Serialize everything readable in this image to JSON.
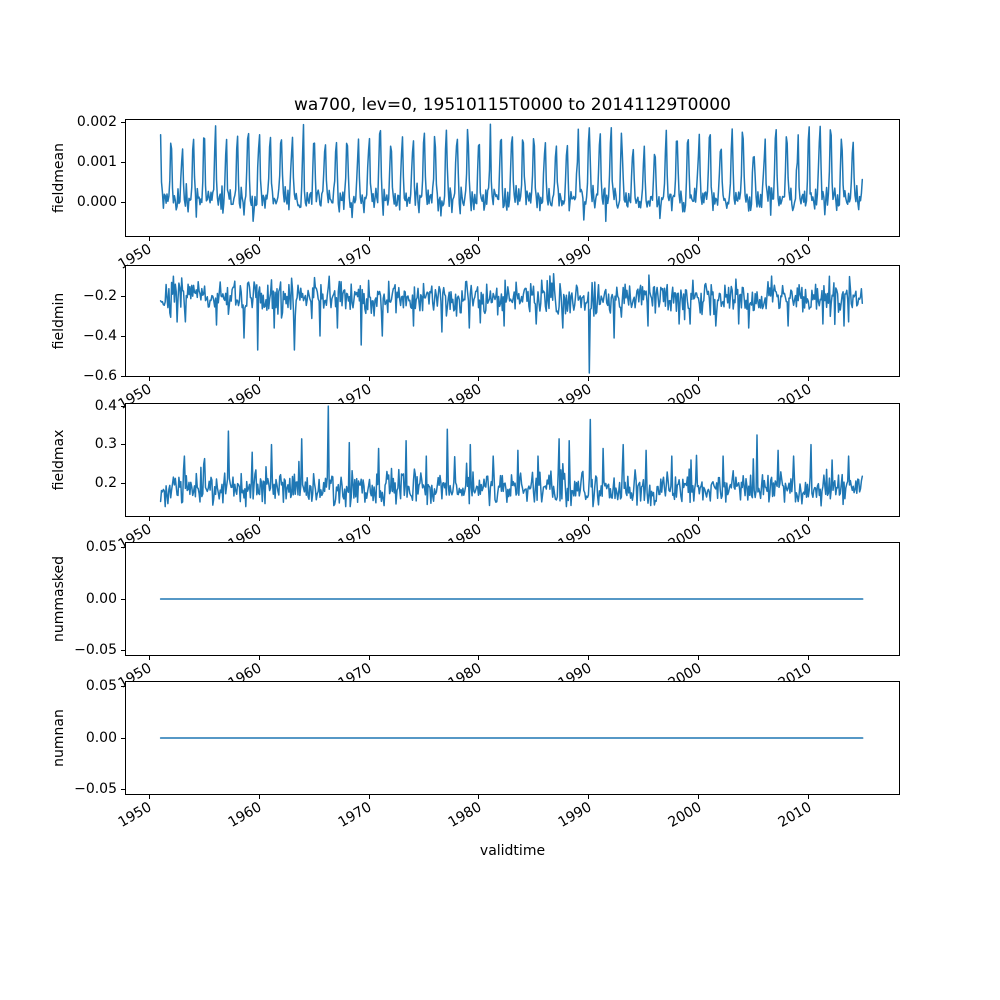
{
  "chart_data": {
    "type": "line",
    "title": "wa700, lev=0, 19510115T0000 to 20141129T0000",
    "xlabel": "validtime",
    "style": {
      "line_color": "#1f77b4",
      "axis_color": "#000000",
      "background": "#ffffff"
    },
    "xlim": [
      1947.8,
      2018.3
    ],
    "x_range_data": [
      1951.04,
      2014.91
    ],
    "xticks": [
      1950,
      1960,
      1970,
      1980,
      1990,
      2000,
      2010
    ],
    "xtick_labels": [
      "1950",
      "1960",
      "1970",
      "1980",
      "1990",
      "2000",
      "2010"
    ],
    "grid": false,
    "legend": "none",
    "subplots": [
      {
        "ylabel": "fieldmean",
        "ylim": [
          -0.00086,
          0.00209
        ],
        "yticks": [
          0.002,
          0.001,
          0.0
        ],
        "ytick_labels": [
          "0.002",
          "0.001",
          "0.000"
        ],
        "series": {
          "kind": "seasonal",
          "points_per_year": 12,
          "seed": 11,
          "base": -8e-05,
          "amp_min": 0.00135,
          "amp_max": 0.00195,
          "noise": 0.00012,
          "skew_p": 0.08,
          "skew_amp": -0.0004,
          "clip": [
            -0.0007,
            0.00196
          ],
          "profile": [
            1.0,
            0.4,
            0.13,
            0.06,
            0.21,
            0.09,
            0.03,
            0.15,
            0.06,
            0.13,
            0.44,
            0.88
          ]
        }
      },
      {
        "ylabel": "fieldmin",
        "ylim": [
          -0.605,
          -0.045
        ],
        "yticks": [
          -0.2,
          -0.4,
          -0.6
        ],
        "ytick_labels": [
          "−0.2",
          "−0.4",
          "−0.6"
        ],
        "series": {
          "kind": "noisy",
          "points_per_year": 12,
          "seed": 7,
          "mean": -0.205,
          "noise": 0.044,
          "skew_p": 0.05,
          "skew_amp": -0.09,
          "clip": [
            -0.6,
            -0.075
          ],
          "spikes": [
            [
              1952.5,
              -0.33
            ],
            [
              1956.1,
              -0.345
            ],
            [
              1958.6,
              -0.41
            ],
            [
              1959.9,
              -0.47
            ],
            [
              1961.4,
              -0.36
            ],
            [
              1963.2,
              -0.47
            ],
            [
              1965.5,
              -0.4
            ],
            [
              1967.1,
              -0.36
            ],
            [
              1969.3,
              -0.445
            ],
            [
              1971.2,
              -0.4
            ],
            [
              1974.0,
              -0.35
            ],
            [
              1976.6,
              -0.38
            ],
            [
              1979.1,
              -0.36
            ],
            [
              1982.3,
              -0.35
            ],
            [
              1985.2,
              -0.34
            ],
            [
              1987.6,
              -0.36
            ],
            [
              1990.0,
              -0.585
            ],
            [
              1992.3,
              -0.41
            ],
            [
              1995.4,
              -0.35
            ],
            [
              1998.2,
              -0.34
            ],
            [
              2001.5,
              -0.35
            ],
            [
              2004.5,
              -0.36
            ],
            [
              2008.1,
              -0.35
            ],
            [
              2011.3,
              -0.34
            ],
            [
              2013.2,
              -0.35
            ]
          ]
        }
      },
      {
        "ylabel": "fieldmax",
        "ylim": [
          0.112,
          0.408
        ],
        "yticks": [
          0.4,
          0.3,
          0.2
        ],
        "ytick_labels": [
          "0.4",
          "0.3",
          "0.2"
        ],
        "series": {
          "kind": "noisy",
          "points_per_year": 12,
          "seed": 13,
          "mean": 0.185,
          "noise": 0.02,
          "skew_p": 0.08,
          "skew_amp": 0.06,
          "clip": [
            0.139,
            0.4
          ],
          "spikes": [
            [
              1953.2,
              0.27
            ],
            [
              1957.2,
              0.335
            ],
            [
              1959.4,
              0.28
            ],
            [
              1961.1,
              0.3
            ],
            [
              1963.9,
              0.315
            ],
            [
              1966.3,
              0.4
            ],
            [
              1968.2,
              0.305
            ],
            [
              1970.9,
              0.29
            ],
            [
              1973.4,
              0.31
            ],
            [
              1975.2,
              0.27
            ],
            [
              1977.1,
              0.34
            ],
            [
              1979.2,
              0.3
            ],
            [
              1981.3,
              0.27
            ],
            [
              1983.5,
              0.285
            ],
            [
              1985.4,
              0.27
            ],
            [
              1987.3,
              0.315
            ],
            [
              1988.2,
              0.31
            ],
            [
              1990.1,
              0.365
            ],
            [
              1991.3,
              0.29
            ],
            [
              1993.1,
              0.3
            ],
            [
              1995.2,
              0.285
            ],
            [
              1997.5,
              0.27
            ],
            [
              1999.3,
              0.26
            ],
            [
              2002.2,
              0.27
            ],
            [
              2005.3,
              0.325
            ],
            [
              2007.2,
              0.285
            ],
            [
              2008.6,
              0.27
            ],
            [
              2010.2,
              0.3
            ],
            [
              2012.1,
              0.26
            ],
            [
              2013.6,
              0.27
            ]
          ]
        }
      },
      {
        "ylabel": "nummasked",
        "ylim": [
          -0.055,
          0.055
        ],
        "yticks": [
          0.05,
          0.0,
          -0.05
        ],
        "ytick_labels": [
          "0.05",
          "0.00",
          "−0.05"
        ],
        "series": {
          "kind": "constant",
          "value": 0
        }
      },
      {
        "ylabel": "numnan",
        "ylim": [
          -0.055,
          0.055
        ],
        "yticks": [
          0.05,
          0.0,
          -0.05
        ],
        "ytick_labels": [
          "0.05",
          "0.00",
          "−0.05"
        ],
        "series": {
          "kind": "constant",
          "value": 0
        }
      }
    ]
  }
}
